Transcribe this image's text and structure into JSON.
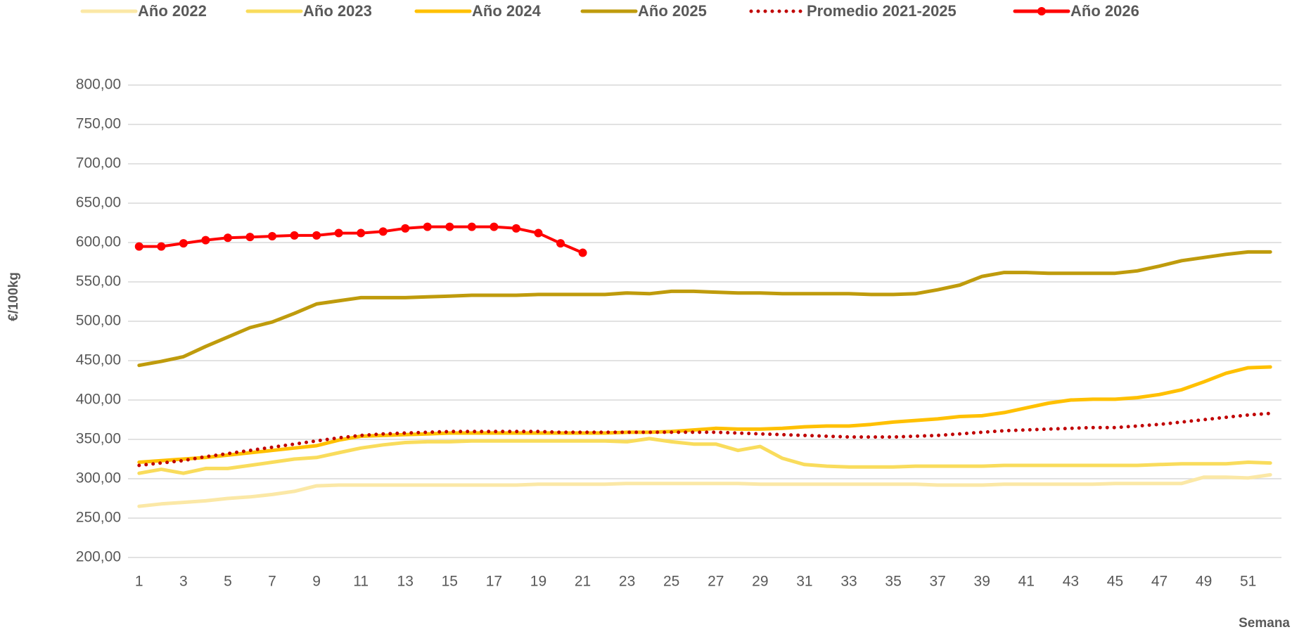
{
  "chart_data": {
    "type": "line",
    "y_label": "€/100kg",
    "x_label": "Semana",
    "categories": [
      1,
      null,
      3,
      null,
      5,
      null,
      7,
      null,
      9,
      null,
      11,
      null,
      13,
      null,
      15,
      null,
      17,
      null,
      19,
      null,
      21,
      null,
      23,
      null,
      25,
      null,
      27,
      null,
      29,
      null,
      31,
      null,
      33,
      null,
      35,
      null,
      37,
      null,
      39,
      null,
      41,
      null,
      43,
      null,
      45,
      null,
      47,
      null,
      49,
      null,
      51,
      null
    ],
    "ylim": [
      200,
      800
    ],
    "yticks": [
      {
        "value": 200,
        "label": "200,00"
      },
      {
        "value": 250,
        "label": "250,00"
      },
      {
        "value": 300,
        "label": "300,00"
      },
      {
        "value": 350,
        "label": "350,00"
      },
      {
        "value": 400,
        "label": "400,00"
      },
      {
        "value": 450,
        "label": "450,00"
      },
      {
        "value": 500,
        "label": "500,00"
      },
      {
        "value": 550,
        "label": "550,00"
      },
      {
        "value": 600,
        "label": "600,00"
      },
      {
        "value": 650,
        "label": "650,00"
      },
      {
        "value": 700,
        "label": "700,00"
      },
      {
        "value": 750,
        "label": "750,00"
      },
      {
        "value": 800,
        "label": "800,00"
      }
    ],
    "grid": true,
    "legend": "top",
    "series": [
      {
        "name": "Año 2022",
        "color": "#fbe8a6",
        "style": "solid",
        "values": [
          265,
          268,
          270,
          272,
          275,
          277,
          280,
          284,
          291,
          292,
          292,
          292,
          292,
          292,
          292,
          292,
          292,
          292,
          293,
          293,
          293,
          293,
          294,
          294,
          294,
          294,
          294,
          294,
          293,
          293,
          293,
          293,
          293,
          293,
          293,
          293,
          292,
          292,
          292,
          293,
          293,
          293,
          293,
          293,
          294,
          294,
          294,
          294,
          302,
          302,
          301,
          305
        ]
      },
      {
        "name": "Año 2023",
        "color": "#f9dc5c",
        "style": "solid",
        "values": [
          307,
          312,
          307,
          313,
          313,
          317,
          321,
          325,
          327,
          333,
          339,
          343,
          346,
          347,
          347,
          348,
          348,
          348,
          348,
          348,
          348,
          348,
          347,
          351,
          347,
          344,
          344,
          336,
          341,
          326,
          318,
          316,
          315,
          315,
          315,
          316,
          316,
          316,
          316,
          317,
          317,
          317,
          317,
          317,
          317,
          317,
          318,
          319,
          319,
          319,
          321,
          320
        ]
      },
      {
        "name": "Año 2024",
        "color": "#ffc000",
        "style": "solid",
        "values": [
          321,
          323,
          325,
          327,
          330,
          333,
          336,
          339,
          342,
          349,
          354,
          355,
          356,
          357,
          358,
          358,
          358,
          358,
          358,
          358,
          358,
          358,
          359,
          359,
          360,
          362,
          364,
          363,
          363,
          364,
          366,
          367,
          367,
          369,
          372,
          374,
          376,
          379,
          380,
          384,
          390,
          396,
          400,
          401,
          401,
          403,
          407,
          413,
          423,
          434,
          441,
          442
        ]
      },
      {
        "name": "Año 2025",
        "color": "#bf9b0c",
        "style": "solid",
        "values": [
          444,
          449,
          455,
          468,
          480,
          492,
          499,
          510,
          522,
          526,
          530,
          530,
          530,
          531,
          532,
          533,
          533,
          533,
          534,
          534,
          534,
          534,
          536,
          535,
          538,
          538,
          537,
          536,
          536,
          535,
          535,
          535,
          535,
          534,
          534,
          535,
          540,
          546,
          557,
          562,
          562,
          561,
          561,
          561,
          561,
          564,
          570,
          577,
          581,
          585,
          588,
          588
        ]
      },
      {
        "name": "Promedio 2021-2025",
        "color": "#c00000",
        "style": "dotted",
        "values": [
          317,
          320,
          323,
          328,
          332,
          336,
          340,
          344,
          348,
          352,
          355,
          357,
          358,
          359,
          360,
          360,
          360,
          360,
          360,
          359,
          359,
          359,
          359,
          359,
          359,
          359,
          359,
          358,
          357,
          356,
          355,
          354,
          353,
          353,
          353,
          354,
          355,
          357,
          359,
          361,
          362,
          363,
          364,
          365,
          365,
          367,
          369,
          372,
          375,
          378,
          381,
          383
        ]
      },
      {
        "name": "Año 2026",
        "color": "#ff0000",
        "style": "marker",
        "values": [
          595,
          595,
          599,
          603,
          606,
          607,
          608,
          609,
          609,
          612,
          612,
          614,
          618,
          620,
          620,
          620,
          620,
          618,
          612,
          599,
          587,
          null,
          null,
          null,
          null,
          null,
          null,
          null,
          null,
          null,
          null,
          null,
          null,
          null,
          null,
          null,
          null,
          null,
          null,
          null,
          null,
          null,
          null,
          null,
          null,
          null,
          null,
          null,
          null,
          null,
          null,
          null
        ]
      }
    ]
  }
}
